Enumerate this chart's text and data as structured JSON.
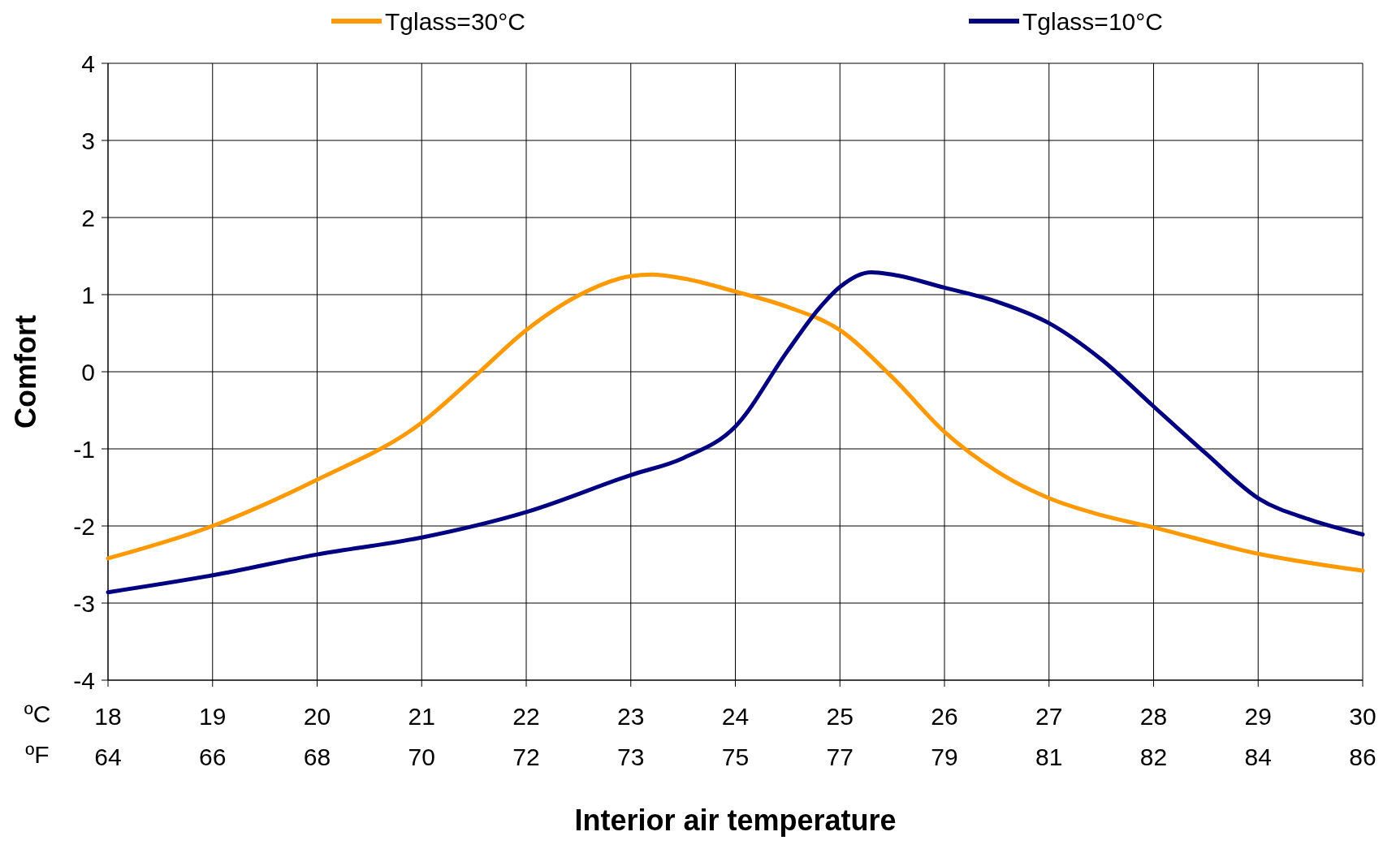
{
  "chart_data": {
    "type": "line",
    "xlabel": "Interior air temperature",
    "ylabel": "Comfort",
    "xlim": [
      18,
      30
    ],
    "xticks": [
      18,
      19,
      20,
      21,
      22,
      23,
      24,
      25,
      26,
      27,
      28,
      29,
      30
    ],
    "x2lim": [
      64.4,
      86
    ],
    "x2ticks": [
      {
        "value": 64.4,
        "label": "64"
      },
      {
        "value": 66.2,
        "label": "66"
      },
      {
        "value": 68,
        "label": "68"
      },
      {
        "value": 69.8,
        "label": "70"
      },
      {
        "value": 71.6,
        "label": "72"
      },
      {
        "value": 73.4,
        "label": "73"
      },
      {
        "value": 75.2,
        "label": "75"
      },
      {
        "value": 77,
        "label": "77"
      },
      {
        "value": 78.8,
        "label": "79"
      },
      {
        "value": 80.6,
        "label": "81"
      },
      {
        "value": 82.4,
        "label": "82"
      },
      {
        "value": 84.2,
        "label": "84"
      },
      {
        "value": 86,
        "label": "86"
      }
    ],
    "ylim": [
      -4,
      4
    ],
    "yticks": [
      -4,
      -3,
      -2,
      -1,
      0,
      1,
      2,
      3,
      4
    ],
    "grid": true,
    "legend": "top",
    "marker": "none",
    "line_style": "solid",
    "annotations": [
      "ºC",
      "ºF"
    ],
    "series": [
      {
        "name": "Tglass=30°C",
        "color": "#ff9900",
        "x": [
          18,
          19,
          20,
          21,
          21.5,
          22,
          22.5,
          23,
          23.2,
          23.5,
          24,
          24.5,
          25,
          25.5,
          26,
          26.5,
          27,
          27.5,
          28,
          29,
          30
        ],
        "values": [
          -2.42,
          -2.0,
          -1.4,
          -0.66,
          -0.07,
          0.54,
          0.99,
          1.24,
          1.26,
          1.21,
          1.04,
          0.84,
          0.54,
          -0.07,
          -0.78,
          -1.29,
          -1.64,
          -1.86,
          -2.02,
          -2.36,
          -2.58
        ]
      },
      {
        "name": "Tglass=10°C",
        "color": "#000080",
        "x": [
          18,
          19,
          20,
          21,
          22,
          23,
          23.5,
          24,
          24.5,
          24.8,
          25,
          25.3,
          25.5,
          26,
          26.5,
          27,
          27.5,
          28,
          28.5,
          29,
          29.5,
          30
        ],
        "values": [
          -2.86,
          -2.64,
          -2.37,
          -2.15,
          -1.82,
          -1.34,
          -1.12,
          -0.71,
          0.27,
          0.82,
          1.1,
          1.29,
          1.26,
          1.09,
          0.91,
          0.63,
          0.16,
          -0.45,
          -1.06,
          -1.64,
          -1.92,
          -2.11
        ]
      }
    ]
  }
}
